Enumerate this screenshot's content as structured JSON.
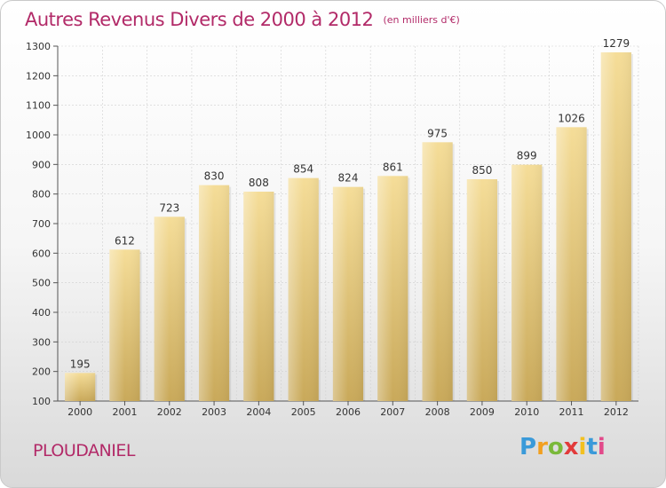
{
  "title": "Autres Revenus Divers de 2000 à 2012",
  "unit": "(en milliers d'€)",
  "commune": "PLOUDANIEL",
  "logo": {
    "letters": [
      "P",
      "r",
      "o",
      "x",
      "i",
      "t",
      "i"
    ],
    "colors": [
      "#3a9ad9",
      "#f2a020",
      "#7ab93a",
      "#e23a3a",
      "#f2c020",
      "#3a9ad9",
      "#e24a8a"
    ]
  },
  "colors": {
    "title": "#b22a68",
    "bar_light": "#f5dd98",
    "bar_dark": "#c9a95a",
    "grid": "#d0d0d0",
    "axis_text": "#333333"
  },
  "chart_data": {
    "type": "bar",
    "categories": [
      "2000",
      "2001",
      "2002",
      "2003",
      "2004",
      "2005",
      "2006",
      "2007",
      "2008",
      "2009",
      "2010",
      "2011",
      "2012"
    ],
    "values": [
      195,
      612,
      723,
      830,
      808,
      854,
      824,
      861,
      975,
      850,
      899,
      1026,
      1279
    ],
    "data_labels": [
      "195",
      "612",
      "723",
      "830",
      "808",
      "854",
      "824",
      "861",
      "975",
      "850",
      "899",
      "1026",
      "1279"
    ],
    "ylim": [
      100,
      1300
    ],
    "yticks": [
      100,
      200,
      300,
      400,
      500,
      600,
      700,
      800,
      900,
      1000,
      1100,
      1200,
      1300
    ],
    "ytick_labels": [
      "100",
      "200",
      "300",
      "400",
      "500",
      "600",
      "700",
      "800",
      "900",
      "1000",
      "1100",
      "1200",
      "1300"
    ],
    "grid": true,
    "legend": "none",
    "xlabel": "",
    "ylabel": ""
  }
}
